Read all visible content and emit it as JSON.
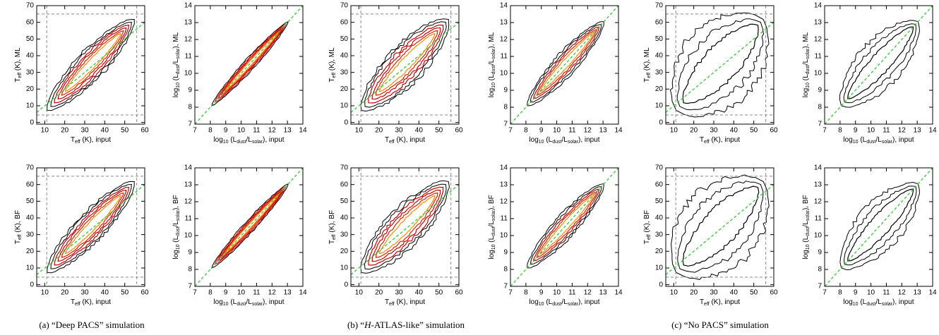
{
  "chart_data": [
    {
      "type": "contour",
      "x_label": [
        {
          "text": "T"
        },
        {
          "text": "eff",
          "sub": true
        },
        {
          "text": " (K), input"
        }
      ],
      "y_label": [
        {
          "text": "T"
        },
        {
          "text": "eff",
          "sub": true
        },
        {
          "text": " (K), ML"
        }
      ],
      "xlim": [
        6,
        60
      ],
      "ylim": [
        -1,
        70
      ],
      "xticks": [
        10,
        20,
        30,
        40,
        50,
        60
      ],
      "yticks": [
        0,
        10,
        20,
        30,
        40,
        50,
        60,
        70
      ],
      "bounds_x": [
        11,
        56
      ],
      "bounds_y": [
        4.5,
        65
      ],
      "one_to_one": true,
      "one_to_one_color": "#33cc33",
      "contour_colors": [
        "#000000",
        "#000000",
        "#cc0000",
        "#cc0000",
        "#dd2200",
        "#ff8800"
      ]
    },
    {
      "type": "contour",
      "x_label": [
        {
          "text": "log"
        },
        {
          "text": "10",
          "sub": true
        },
        {
          "text": " (L"
        },
        {
          "text": "dust",
          "sub": true
        },
        {
          "text": "/L"
        },
        {
          "text": "solar",
          "sub": true
        },
        {
          "text": "), input"
        }
      ],
      "y_label": [
        {
          "text": "log"
        },
        {
          "text": "10",
          "sub": true
        },
        {
          "text": " (L"
        },
        {
          "text": "dust",
          "sub": true
        },
        {
          "text": "/L"
        },
        {
          "text": "solar",
          "sub": true
        },
        {
          "text": "), ML"
        }
      ],
      "xlim": [
        7,
        14
      ],
      "ylim": [
        7,
        14
      ],
      "xticks": [
        7,
        8,
        9,
        10,
        11,
        12,
        13,
        14
      ],
      "yticks": [
        7,
        8,
        9,
        10,
        11,
        12,
        13,
        14
      ],
      "one_to_one": true,
      "one_to_one_color": "#33cc33",
      "contour_colors": [
        "#000000",
        "#cc0000",
        "#cc0000",
        "#dd2200",
        "#ff8800"
      ]
    },
    {
      "type": "contour",
      "x_label": [
        {
          "text": "T"
        },
        {
          "text": "eff",
          "sub": true
        },
        {
          "text": " (K), input"
        }
      ],
      "y_label": [
        {
          "text": "T"
        },
        {
          "text": "eff",
          "sub": true
        },
        {
          "text": " (K), ML"
        }
      ],
      "xlim": [
        6,
        60
      ],
      "ylim": [
        -1,
        70
      ],
      "xticks": [
        10,
        20,
        30,
        40,
        50,
        60
      ],
      "yticks": [
        0,
        10,
        20,
        30,
        40,
        50,
        60,
        70
      ],
      "bounds_x": [
        11,
        56
      ],
      "bounds_y": [
        4.5,
        65
      ],
      "one_to_one": true,
      "one_to_one_color": "#33cc33",
      "contour_colors": [
        "#000000",
        "#000000",
        "#cc0000",
        "#cc0000",
        "#dd2200",
        "#ff8800"
      ]
    },
    {
      "type": "contour",
      "x_label": [
        {
          "text": "log"
        },
        {
          "text": "10",
          "sub": true
        },
        {
          "text": " (L"
        },
        {
          "text": "dust",
          "sub": true
        },
        {
          "text": "/L"
        },
        {
          "text": "solar",
          "sub": true
        },
        {
          "text": "), input"
        }
      ],
      "y_label": [
        {
          "text": "log"
        },
        {
          "text": "10",
          "sub": true
        },
        {
          "text": " (L"
        },
        {
          "text": "dust",
          "sub": true
        },
        {
          "text": "/L"
        },
        {
          "text": "solar",
          "sub": true
        },
        {
          "text": "), ML"
        }
      ],
      "xlim": [
        7,
        14
      ],
      "ylim": [
        7,
        14
      ],
      "xticks": [
        7,
        8,
        9,
        10,
        11,
        12,
        13,
        14
      ],
      "yticks": [
        7,
        8,
        9,
        10,
        11,
        12,
        13,
        14
      ],
      "one_to_one": true,
      "one_to_one_color": "#33cc33",
      "contour_colors": [
        "#000000",
        "#000000",
        "#cc0000",
        "#dd2200",
        "#ff8800"
      ]
    },
    {
      "type": "contour",
      "x_label": [
        {
          "text": "T"
        },
        {
          "text": "eff",
          "sub": true
        },
        {
          "text": " (K), input"
        }
      ],
      "y_label": [
        {
          "text": "T"
        },
        {
          "text": "eff",
          "sub": true
        },
        {
          "text": " (K), ML"
        }
      ],
      "xlim": [
        6,
        60
      ],
      "ylim": [
        -1,
        70
      ],
      "xticks": [
        10,
        20,
        30,
        40,
        50,
        60
      ],
      "yticks": [
        0,
        10,
        20,
        30,
        40,
        50,
        60,
        70
      ],
      "bounds_x": [
        11,
        56
      ],
      "bounds_y": [
        4.5,
        65
      ],
      "one_to_one": true,
      "one_to_one_color": "#33cc33",
      "contour_colors": [
        "#000000",
        "#000000",
        "#000000"
      ]
    },
    {
      "type": "contour",
      "x_label": [
        {
          "text": "log"
        },
        {
          "text": "10",
          "sub": true
        },
        {
          "text": " (L"
        },
        {
          "text": "dust",
          "sub": true
        },
        {
          "text": "/L"
        },
        {
          "text": "solar",
          "sub": true
        },
        {
          "text": "), input"
        }
      ],
      "y_label": [
        {
          "text": "log"
        },
        {
          "text": "10",
          "sub": true
        },
        {
          "text": " (L"
        },
        {
          "text": "dust",
          "sub": true
        },
        {
          "text": "/L"
        },
        {
          "text": "solar",
          "sub": true
        },
        {
          "text": "), ML"
        }
      ],
      "xlim": [
        7,
        14
      ],
      "ylim": [
        7,
        14
      ],
      "xticks": [
        7,
        8,
        9,
        10,
        11,
        12,
        13,
        14
      ],
      "yticks": [
        7,
        8,
        9,
        10,
        11,
        12,
        13,
        14
      ],
      "one_to_one": true,
      "one_to_one_color": "#33cc33",
      "contour_colors": [
        "#000000",
        "#000000",
        "#000000"
      ]
    },
    {
      "type": "contour",
      "x_label": [
        {
          "text": "T"
        },
        {
          "text": "eff",
          "sub": true
        },
        {
          "text": " (K), input"
        }
      ],
      "y_label": [
        {
          "text": "T"
        },
        {
          "text": "eff",
          "sub": true
        },
        {
          "text": " (K), BF"
        }
      ],
      "xlim": [
        6,
        60
      ],
      "ylim": [
        -1,
        70
      ],
      "xticks": [
        10,
        20,
        30,
        40,
        50,
        60
      ],
      "yticks": [
        0,
        10,
        20,
        30,
        40,
        50,
        60,
        70
      ],
      "bounds_x": [
        11,
        56
      ],
      "bounds_y": [
        4.5,
        65
      ],
      "one_to_one": true,
      "one_to_one_color": "#33cc33",
      "contour_colors": [
        "#000000",
        "#000000",
        "#cc0000",
        "#cc0000",
        "#dd2200",
        "#ff8800"
      ]
    },
    {
      "type": "contour",
      "x_label": [
        {
          "text": "log"
        },
        {
          "text": "10",
          "sub": true
        },
        {
          "text": " (L"
        },
        {
          "text": "dust",
          "sub": true
        },
        {
          "text": "/L"
        },
        {
          "text": "solar",
          "sub": true
        },
        {
          "text": "), input"
        }
      ],
      "y_label": [
        {
          "text": "log"
        },
        {
          "text": "10",
          "sub": true
        },
        {
          "text": " (L"
        },
        {
          "text": "dust",
          "sub": true
        },
        {
          "text": "/L"
        },
        {
          "text": "solar",
          "sub": true
        },
        {
          "text": "), BF"
        }
      ],
      "xlim": [
        7,
        14
      ],
      "ylim": [
        7,
        14
      ],
      "xticks": [
        7,
        8,
        9,
        10,
        11,
        12,
        13,
        14
      ],
      "yticks": [
        7,
        8,
        9,
        10,
        11,
        12,
        13,
        14
      ],
      "one_to_one": true,
      "one_to_one_color": "#33cc33",
      "contour_colors": [
        "#000000",
        "#cc0000",
        "#cc0000",
        "#dd2200",
        "#ff8800"
      ]
    },
    {
      "type": "contour",
      "x_label": [
        {
          "text": "T"
        },
        {
          "text": "eff",
          "sub": true
        },
        {
          "text": " (K), input"
        }
      ],
      "y_label": [
        {
          "text": "T"
        },
        {
          "text": "eff",
          "sub": true
        },
        {
          "text": " (K), BF"
        }
      ],
      "xlim": [
        6,
        60
      ],
      "ylim": [
        -1,
        70
      ],
      "xticks": [
        10,
        20,
        30,
        40,
        50,
        60
      ],
      "yticks": [
        0,
        10,
        20,
        30,
        40,
        50,
        60,
        70
      ],
      "bounds_x": [
        11,
        56
      ],
      "bounds_y": [
        4.5,
        65
      ],
      "one_to_one": true,
      "one_to_one_color": "#33cc33",
      "contour_colors": [
        "#000000",
        "#000000",
        "#cc0000",
        "#cc0000",
        "#dd2200",
        "#ff8800"
      ]
    },
    {
      "type": "contour",
      "x_label": [
        {
          "text": "log"
        },
        {
          "text": "10",
          "sub": true
        },
        {
          "text": " (L"
        },
        {
          "text": "dust",
          "sub": true
        },
        {
          "text": "/L"
        },
        {
          "text": "solar",
          "sub": true
        },
        {
          "text": "), input"
        }
      ],
      "y_label": [
        {
          "text": "log"
        },
        {
          "text": "10",
          "sub": true
        },
        {
          "text": " (L"
        },
        {
          "text": "dust",
          "sub": true
        },
        {
          "text": "/L"
        },
        {
          "text": "solar",
          "sub": true
        },
        {
          "text": "), BF"
        }
      ],
      "xlim": [
        7,
        14
      ],
      "ylim": [
        7,
        14
      ],
      "xticks": [
        7,
        8,
        9,
        10,
        11,
        12,
        13,
        14
      ],
      "yticks": [
        7,
        8,
        9,
        10,
        11,
        12,
        13,
        14
      ],
      "one_to_one": true,
      "one_to_one_color": "#33cc33",
      "contour_colors": [
        "#000000",
        "#000000",
        "#cc0000",
        "#dd2200",
        "#ff8800"
      ]
    },
    {
      "type": "contour",
      "x_label": [
        {
          "text": "T"
        },
        {
          "text": "eff",
          "sub": true
        },
        {
          "text": " (K), input"
        }
      ],
      "y_label": [
        {
          "text": "T"
        },
        {
          "text": "eff",
          "sub": true
        },
        {
          "text": " (K), BF"
        }
      ],
      "xlim": [
        6,
        60
      ],
      "ylim": [
        -1,
        70
      ],
      "xticks": [
        10,
        20,
        30,
        40,
        50,
        60
      ],
      "yticks": [
        0,
        10,
        20,
        30,
        40,
        50,
        60,
        70
      ],
      "bounds_x": [
        11,
        56
      ],
      "bounds_y": [
        4.5,
        65
      ],
      "one_to_one": true,
      "one_to_one_color": "#33cc33",
      "contour_colors": [
        "#000000",
        "#000000",
        "#000000"
      ]
    },
    {
      "type": "contour",
      "x_label": [
        {
          "text": "log"
        },
        {
          "text": "10",
          "sub": true
        },
        {
          "text": " (L"
        },
        {
          "text": "dust",
          "sub": true
        },
        {
          "text": "/L"
        },
        {
          "text": "solar",
          "sub": true
        },
        {
          "text": "), input"
        }
      ],
      "y_label": [
        {
          "text": "log"
        },
        {
          "text": "10",
          "sub": true
        },
        {
          "text": " (L"
        },
        {
          "text": "dust",
          "sub": true
        },
        {
          "text": "/L"
        },
        {
          "text": "solar",
          "sub": true
        },
        {
          "text": "), BF"
        }
      ],
      "xlim": [
        7,
        14
      ],
      "ylim": [
        7,
        14
      ],
      "xticks": [
        7,
        8,
        9,
        10,
        11,
        12,
        13,
        14
      ],
      "yticks": [
        7,
        8,
        9,
        10,
        11,
        12,
        13,
        14
      ],
      "one_to_one": true,
      "one_to_one_color": "#33cc33",
      "contour_colors": [
        "#000000",
        "#000000",
        "#000000"
      ]
    }
  ],
  "captions": [
    [
      {
        "text": "(a) “Deep PACS” simulation"
      }
    ],
    [
      {
        "text": "(b) “"
      },
      {
        "text": "H",
        "italic": true
      },
      {
        "text": "-ATLAS-like” simulation"
      }
    ],
    [
      {
        "text": "(c) “No PACS” simulation"
      }
    ]
  ]
}
